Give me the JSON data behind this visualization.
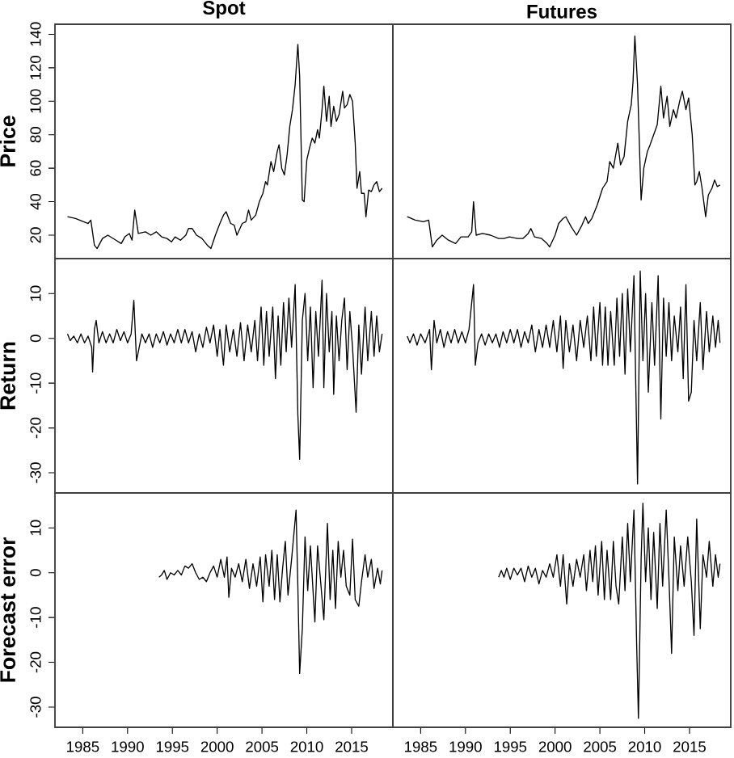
{
  "chart_data": [
    {
      "type": "line",
      "title": "Spot",
      "ylabel": "Price",
      "color": "#000000",
      "tick_labels": "y",
      "xlim": [
        1981.9,
        2019.6
      ],
      "ylim": [
        6,
        146
      ],
      "yticks": [
        20,
        40,
        60,
        80,
        100,
        120,
        140
      ],
      "x": [
        1983.3,
        1984.2,
        1985.1,
        1985.6,
        1985.9,
        1986.3,
        1986.6,
        1987.2,
        1987.8,
        1988.7,
        1989.3,
        1989.7,
        1990.2,
        1990.5,
        1990.8,
        1991.2,
        1992.0,
        1992.6,
        1993.2,
        1993.8,
        1994.4,
        1994.9,
        1995.3,
        1995.9,
        1996.5,
        1996.8,
        1997.2,
        1997.7,
        1998.3,
        1998.9,
        1999.3,
        1999.8,
        2000.3,
        2000.7,
        2001.0,
        2001.5,
        2001.9,
        2002.2,
        2002.8,
        2003.2,
        2003.5,
        2003.8,
        2004.3,
        2004.7,
        2005.1,
        2005.4,
        2005.6,
        2006.0,
        2006.3,
        2006.7,
        2006.9,
        2007.2,
        2007.5,
        2007.8,
        2008.1,
        2008.4,
        2008.7,
        2009.0,
        2009.2,
        2009.5,
        2009.7,
        2010.0,
        2010.3,
        2010.6,
        2010.9,
        2011.2,
        2011.4,
        2011.7,
        2011.9,
        2012.2,
        2012.5,
        2012.7,
        2013.0,
        2013.3,
        2013.6,
        2014.0,
        2014.2,
        2014.5,
        2014.8,
        2015.1,
        2015.4,
        2015.6,
        2015.9,
        2016.1,
        2016.4,
        2016.6,
        2016.9,
        2017.2,
        2017.5,
        2017.8,
        2018.1,
        2018.4
      ],
      "values": [
        31,
        30,
        28,
        27,
        29,
        14,
        12,
        18,
        20,
        17,
        15,
        19,
        21,
        17,
        35,
        21,
        22,
        20,
        22,
        19,
        18,
        16,
        19,
        17,
        20,
        24,
        24,
        20,
        18,
        14,
        12,
        20,
        27,
        32,
        34,
        27,
        26,
        20,
        27,
        28,
        35,
        29,
        32,
        40,
        45,
        52,
        50,
        64,
        58,
        70,
        74,
        60,
        56,
        68,
        85,
        95,
        110,
        134,
        115,
        41,
        40,
        65,
        72,
        78,
        75,
        83,
        78,
        95,
        109,
        88,
        103,
        85,
        97,
        88,
        92,
        106,
        96,
        98,
        104,
        100,
        75,
        48,
        58,
        45,
        45,
        31,
        47,
        46,
        50,
        52,
        46,
        48
      ]
    },
    {
      "type": "line",
      "title": "Futures",
      "color": "#000000",
      "tick_labels": false,
      "xlim": [
        1981.9,
        2019.6
      ],
      "ylim": [
        6,
        146
      ],
      "x": [
        1983.5,
        1984.4,
        1985.3,
        1985.9,
        1986.3,
        1986.8,
        1987.4,
        1988.1,
        1988.9,
        1989.5,
        1990.3,
        1990.7,
        1990.9,
        1991.2,
        1991.9,
        1992.8,
        1993.7,
        1994.3,
        1994.9,
        1995.8,
        1996.4,
        1997.0,
        1997.3,
        1997.7,
        1998.5,
        1999.1,
        1999.4,
        2000.0,
        2000.4,
        2000.9,
        2001.2,
        2001.8,
        2002.4,
        2003.0,
        2003.4,
        2003.7,
        2004.1,
        2004.7,
        2005.3,
        2005.8,
        2006.1,
        2006.5,
        2007.0,
        2007.3,
        2007.7,
        2008.1,
        2008.5,
        2008.7,
        2008.9,
        2009.2,
        2009.6,
        2009.9,
        2010.3,
        2010.6,
        2011.0,
        2011.4,
        2011.8,
        2012.1,
        2012.5,
        2012.8,
        2013.2,
        2013.5,
        2013.9,
        2014.2,
        2014.6,
        2014.9,
        2015.3,
        2015.6,
        2015.8,
        2016.1,
        2016.4,
        2016.8,
        2017.1,
        2017.5,
        2017.8,
        2018.1,
        2018.4
      ],
      "values": [
        31,
        29,
        28,
        29,
        13,
        17,
        20,
        17,
        15,
        19,
        19,
        22,
        40,
        20,
        21,
        20,
        18,
        18,
        19,
        18,
        18,
        21,
        24,
        19,
        18,
        15,
        13,
        20,
        27,
        30,
        31,
        25,
        20,
        26,
        31,
        27,
        30,
        38,
        48,
        52,
        64,
        60,
        75,
        62,
        67,
        88,
        98,
        112,
        139,
        110,
        41,
        60,
        70,
        74,
        80,
        86,
        109,
        90,
        103,
        85,
        95,
        90,
        100,
        106,
        95,
        102,
        80,
        50,
        52,
        58,
        48,
        31,
        44,
        48,
        53,
        49,
        50
      ]
    },
    {
      "type": "line",
      "ylabel": "Return",
      "color": "#000000",
      "tick_labels": "y",
      "xlim": [
        1981.9,
        2019.6
      ],
      "ylim": [
        -34.5,
        17.8
      ],
      "yticks": [
        -30,
        -20,
        -10,
        0,
        10
      ],
      "x": [
        1983.3,
        1983.6,
        1984.0,
        1984.4,
        1984.8,
        1985.2,
        1985.6,
        1986.0,
        1986.1,
        1986.3,
        1986.5,
        1986.8,
        1987.2,
        1987.6,
        1988.0,
        1988.4,
        1988.8,
        1989.2,
        1989.6,
        1990.0,
        1990.4,
        1990.7,
        1991.0,
        1991.3,
        1991.6,
        1992.0,
        1992.4,
        1992.8,
        1993.2,
        1993.6,
        1994.0,
        1994.4,
        1994.8,
        1995.2,
        1995.6,
        1996.0,
        1996.4,
        1996.8,
        1997.2,
        1997.6,
        1998.0,
        1998.4,
        1998.8,
        1999.2,
        1999.6,
        2000.0,
        2000.3,
        2000.7,
        2001.0,
        2001.4,
        2001.8,
        2002.2,
        2002.6,
        2003.0,
        2003.4,
        2003.8,
        2004.2,
        2004.5,
        2004.9,
        2005.2,
        2005.5,
        2005.8,
        2006.2,
        2006.5,
        2006.8,
        2007.1,
        2007.4,
        2007.7,
        2008.0,
        2008.3,
        2008.7,
        2009.0,
        2009.2,
        2009.5,
        2009.8,
        2010.1,
        2010.4,
        2010.7,
        2011.0,
        2011.3,
        2011.7,
        2011.9,
        2012.2,
        2012.5,
        2012.8,
        2013.0,
        2013.3,
        2013.6,
        2013.9,
        2014.2,
        2014.5,
        2014.8,
        2015.1,
        2015.5,
        2015.8,
        2016.1,
        2016.5,
        2016.8,
        2017.2,
        2017.5,
        2017.8,
        2018.1,
        2018.4
      ],
      "values": [
        1,
        -0.5,
        0.5,
        -1,
        1,
        -1,
        0.5,
        -2,
        -7.5,
        2,
        4,
        -1,
        1.5,
        -1,
        1,
        -1,
        2,
        -0.5,
        1.5,
        -1,
        1,
        8.5,
        -5,
        -2,
        1,
        -1,
        1,
        -2,
        1,
        -1,
        1.5,
        -1.5,
        1,
        -1,
        2,
        -1,
        2,
        -1,
        1.5,
        -3,
        1,
        -2,
        2.5,
        -1,
        3,
        -4,
        2,
        -6,
        3,
        -3,
        2,
        -4,
        3.5,
        -5,
        3,
        -3,
        4,
        -5,
        7,
        -6,
        6,
        -4,
        7,
        -9,
        5,
        -6,
        8,
        -3,
        9,
        -2,
        12,
        -17,
        -27,
        4,
        10,
        -5,
        7,
        -11,
        6,
        -4,
        13,
        -11,
        10,
        -3,
        6,
        -12.5,
        5,
        -5,
        4,
        9,
        -7,
        6,
        -2,
        -16.5,
        3,
        -8,
        7,
        -5,
        6,
        -4,
        5,
        -3,
        1
      ]
    },
    {
      "type": "line",
      "color": "#000000",
      "tick_labels": false,
      "xlim": [
        1981.9,
        2019.6
      ],
      "ylim": [
        -34.5,
        17.8
      ],
      "x": [
        1983.5,
        1983.8,
        1984.2,
        1984.6,
        1985.0,
        1985.5,
        1986.0,
        1986.2,
        1986.5,
        1986.8,
        1987.2,
        1987.6,
        1988.0,
        1988.4,
        1988.8,
        1989.2,
        1989.6,
        1990.0,
        1990.4,
        1990.9,
        1991.1,
        1991.4,
        1991.8,
        1992.2,
        1992.6,
        1993.0,
        1993.4,
        1993.8,
        1994.2,
        1994.6,
        1995.0,
        1995.4,
        1995.8,
        1996.2,
        1996.6,
        1997.0,
        1997.4,
        1997.8,
        1998.2,
        1998.6,
        1999.0,
        1999.4,
        1999.8,
        2000.2,
        2000.6,
        2000.9,
        2001.2,
        2001.6,
        2002.0,
        2002.4,
        2002.8,
        2003.2,
        2003.6,
        2004.0,
        2004.3,
        2004.6,
        2005.0,
        2005.3,
        2005.6,
        2005.9,
        2006.2,
        2006.6,
        2006.9,
        2007.2,
        2007.5,
        2007.8,
        2008.1,
        2008.4,
        2008.8,
        2009.0,
        2009.2,
        2009.5,
        2009.8,
        2010.1,
        2010.4,
        2010.8,
        2011.1,
        2011.5,
        2011.8,
        2012.1,
        2012.4,
        2012.7,
        2013.0,
        2013.3,
        2013.7,
        2014.0,
        2014.3,
        2014.6,
        2014.9,
        2015.2,
        2015.5,
        2015.8,
        2016.2,
        2016.5,
        2016.9,
        2017.2,
        2017.6,
        2017.9,
        2018.2,
        2018.4
      ],
      "values": [
        0.5,
        -1,
        1,
        -1.5,
        1,
        -1,
        2,
        -7,
        4,
        -1,
        2,
        -2,
        1.5,
        -1,
        2,
        -1,
        1.5,
        -1,
        2,
        12,
        -6,
        -1,
        1,
        -1.5,
        1,
        -1,
        1,
        -2,
        1.5,
        -1,
        2,
        -1,
        2,
        -2,
        1.5,
        -1,
        3,
        -3,
        2,
        -2,
        3,
        -2,
        4,
        -3,
        5,
        -6.7,
        4,
        -3,
        3,
        -5,
        4,
        -2,
        5,
        -5,
        7,
        -4,
        8,
        -6,
        7,
        -6,
        6,
        -6,
        9,
        -4,
        10,
        -8,
        11,
        -3,
        14,
        -10,
        -32.5,
        15,
        -5,
        10,
        -12,
        8,
        -6,
        14,
        -18,
        9,
        -4,
        8,
        -5,
        5,
        -3,
        7,
        -9,
        12,
        -14,
        -12,
        4,
        -5,
        8,
        -7,
        6,
        -3,
        5,
        -2,
        4,
        -1
      ]
    },
    {
      "type": "line",
      "ylabel": "Forecast error",
      "color": "#000000",
      "xlim": [
        1981.9,
        2019.6
      ],
      "ylim": [
        -34.5,
        17.8
      ],
      "xticks": [
        1985,
        1990,
        1995,
        2000,
        2005,
        2010,
        2015
      ],
      "yticks": [
        -30,
        -20,
        -10,
        0,
        10
      ],
      "x": [
        1993.5,
        1993.8,
        1994.1,
        1994.4,
        1994.8,
        1995.2,
        1995.6,
        1996.0,
        1996.4,
        1996.8,
        1997.2,
        1997.6,
        1998.0,
        1998.4,
        1998.8,
        1999.2,
        1999.6,
        2000.0,
        2000.4,
        2000.8,
        2001.1,
        2001.3,
        2001.6,
        2002.0,
        2002.4,
        2002.8,
        2003.2,
        2003.6,
        2004.0,
        2004.4,
        2004.8,
        2005.1,
        2005.4,
        2005.8,
        2006.1,
        2006.4,
        2006.7,
        2007.0,
        2007.3,
        2007.6,
        2007.9,
        2008.3,
        2008.8,
        2009.0,
        2009.2,
        2009.5,
        2009.8,
        2010.1,
        2010.4,
        2010.9,
        2011.2,
        2011.5,
        2011.9,
        2012.3,
        2012.6,
        2012.9,
        2013.2,
        2013.5,
        2013.8,
        2014.1,
        2014.4,
        2014.8,
        2015.1,
        2015.4,
        2015.8,
        2016.1,
        2016.5,
        2016.8,
        2017.2,
        2017.5,
        2017.9,
        2018.2,
        2018.4
      ],
      "values": [
        -1,
        -0.5,
        0.5,
        -1.5,
        0,
        -0.5,
        0.5,
        -0.5,
        1.5,
        1,
        2,
        0,
        -1.5,
        -1,
        -2,
        0,
        1.5,
        -1,
        3,
        -1,
        3.5,
        -5.5,
        1,
        -1,
        2,
        -2,
        3,
        -3.5,
        2,
        -3,
        3.5,
        -6.5,
        4,
        -3,
        5,
        -6,
        4,
        -6.5,
        1,
        7,
        -5,
        3,
        14,
        -3,
        -22.5,
        -12.5,
        8,
        -4,
        6,
        -11,
        6,
        -1,
        -10.5,
        11,
        -6,
        5,
        -8,
        7,
        -1,
        5,
        -3,
        -5,
        7.5,
        -6,
        -7.5,
        -2,
        4,
        -1,
        3,
        -3.5,
        1,
        -2.5,
        0.5
      ]
    },
    {
      "type": "line",
      "color": "#000000",
      "tick_labels": "x",
      "xlim": [
        1981.9,
        2019.6
      ],
      "ylim": [
        -34.5,
        17.8
      ],
      "xticks": [
        1985,
        1990,
        1995,
        2000,
        2005,
        2010,
        2015
      ],
      "x": [
        1993.7,
        1994.0,
        1994.3,
        1994.6,
        1995.0,
        1995.4,
        1995.8,
        1996.2,
        1996.6,
        1997.0,
        1997.4,
        1997.8,
        1998.2,
        1998.6,
        1999.0,
        1999.4,
        1999.8,
        2000.2,
        2000.6,
        2000.9,
        2001.3,
        2001.6,
        2002.0,
        2002.4,
        2002.8,
        2003.2,
        2003.5,
        2003.9,
        2004.2,
        2004.5,
        2004.8,
        2005.2,
        2005.5,
        2005.8,
        2006.2,
        2006.5,
        2006.8,
        2007.1,
        2007.5,
        2007.8,
        2008.1,
        2008.4,
        2008.8,
        2009.1,
        2009.3,
        2009.6,
        2009.8,
        2010.1,
        2010.4,
        2010.7,
        2011.0,
        2011.4,
        2011.7,
        2012.0,
        2012.4,
        2012.7,
        2013.0,
        2013.3,
        2013.7,
        2014.0,
        2014.4,
        2014.8,
        2015.2,
        2015.5,
        2015.8,
        2016.2,
        2016.5,
        2016.9,
        2017.2,
        2017.6,
        2017.9,
        2018.2,
        2018.4
      ],
      "values": [
        -1,
        0.5,
        -1,
        1,
        -1.5,
        1,
        -0.5,
        1,
        -2,
        1.5,
        -1,
        1,
        -2.5,
        0.5,
        -1,
        2,
        -1,
        4,
        -3,
        4,
        -7,
        2,
        -3,
        3,
        -1,
        4,
        -4,
        5,
        -2,
        6,
        -5,
        7,
        -6,
        5,
        -6,
        7,
        -3,
        -7,
        8,
        -4,
        11,
        -2,
        14,
        -16,
        -32.5,
        3,
        15.5,
        -2,
        10,
        -6,
        9,
        -8,
        11,
        -3,
        14,
        -1,
        -18,
        8,
        -4,
        6,
        -3,
        8,
        -2,
        -14,
        12,
        -12.5,
        4,
        -1,
        7,
        -3,
        4,
        -1,
        2
      ]
    }
  ]
}
